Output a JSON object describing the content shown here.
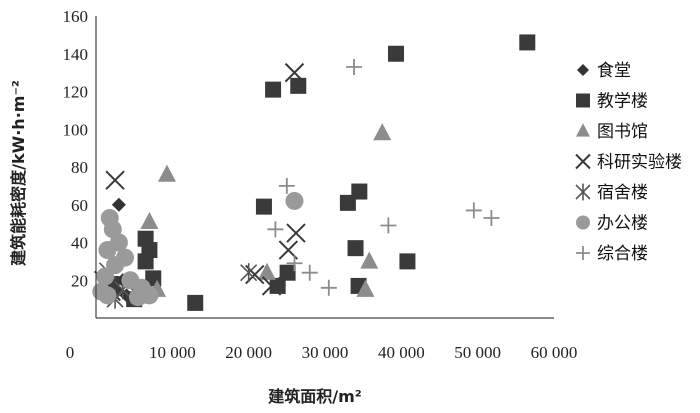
{
  "chart_data": {
    "type": "scatter",
    "title": "",
    "xlabel": "建筑面积/m²",
    "ylabel": "建筑能耗密度/kW·h·m⁻²",
    "xlim": [
      0,
      60000
    ],
    "ylim": [
      0,
      160
    ],
    "x_ticks": [
      0,
      10000,
      20000,
      30000,
      40000,
      50000,
      60000
    ],
    "x_tick_labels": [
      "0",
      "10 000",
      "20 000",
      "30 000",
      "40 000",
      "50 000",
      "60 000"
    ],
    "y_ticks": [
      20,
      40,
      60,
      80,
      100,
      120,
      140,
      160
    ],
    "y_tick_labels": [
      "20",
      "40",
      "60",
      "80",
      "100",
      "120",
      "140",
      "160"
    ],
    "y_zero_label": "0",
    "grid": false,
    "legend_position": "right",
    "series": [
      {
        "name": "食堂",
        "marker": "diamond",
        "color": "#333333",
        "points": [
          [
            3000,
            60
          ],
          [
            2500,
            15
          ],
          [
            3500,
            20
          ],
          [
            4000,
            12
          ]
        ]
      },
      {
        "name": "教学楼",
        "marker": "square",
        "color": "#3a3a3a",
        "points": [
          [
            56500,
            146
          ],
          [
            39300,
            140
          ],
          [
            23200,
            121
          ],
          [
            26500,
            123
          ],
          [
            22000,
            59
          ],
          [
            33000,
            61
          ],
          [
            34500,
            67
          ],
          [
            34000,
            37
          ],
          [
            40800,
            30
          ],
          [
            34400,
            17
          ],
          [
            23800,
            17
          ],
          [
            25100,
            24
          ],
          [
            13000,
            8
          ],
          [
            6500,
            42
          ],
          [
            7000,
            36
          ],
          [
            6500,
            30
          ],
          [
            7500,
            21
          ],
          [
            5000,
            10
          ],
          [
            2000,
            18
          ]
        ]
      },
      {
        "name": "图书馆",
        "marker": "triangle",
        "color": "#8c8c8c",
        "points": [
          [
            37500,
            98
          ],
          [
            9300,
            76
          ],
          [
            7000,
            51
          ],
          [
            35800,
            30
          ],
          [
            35300,
            15
          ],
          [
            22400,
            24
          ],
          [
            8000,
            15
          ],
          [
            6000,
            14
          ]
        ]
      },
      {
        "name": "科研实验楼",
        "marker": "x",
        "color": "#3a3a3a",
        "points": [
          [
            26000,
            130
          ],
          [
            2500,
            73
          ],
          [
            26200,
            45
          ],
          [
            25200,
            36
          ],
          [
            20800,
            23
          ],
          [
            23000,
            17
          ],
          [
            1000,
            20
          ],
          [
            2000,
            14
          ]
        ]
      },
      {
        "name": "宿舍楼",
        "marker": "asterisk",
        "color": "#555555",
        "points": [
          [
            1500,
            25
          ],
          [
            3500,
            15
          ],
          [
            5500,
            12
          ],
          [
            20000,
            24
          ],
          [
            2500,
            10
          ]
        ]
      },
      {
        "name": "办公楼",
        "marker": "circle",
        "color": "#9a9a9a",
        "points": [
          [
            26000,
            62
          ],
          [
            1800,
            53
          ],
          [
            2200,
            47
          ],
          [
            3000,
            40
          ],
          [
            1500,
            36
          ],
          [
            3800,
            32
          ],
          [
            2500,
            28
          ],
          [
            1200,
            22
          ],
          [
            4500,
            20
          ],
          [
            6000,
            16
          ],
          [
            700,
            14
          ],
          [
            7000,
            12
          ],
          [
            5500,
            11
          ],
          [
            1500,
            12
          ]
        ]
      },
      {
        "name": "综合楼",
        "marker": "plus",
        "color": "#8c8c8c",
        "points": [
          [
            33800,
            133
          ],
          [
            25000,
            70
          ],
          [
            49500,
            57
          ],
          [
            51800,
            53
          ],
          [
            38300,
            49
          ],
          [
            23500,
            47
          ],
          [
            28000,
            24
          ],
          [
            30500,
            16
          ],
          [
            26000,
            29
          ]
        ]
      }
    ]
  }
}
